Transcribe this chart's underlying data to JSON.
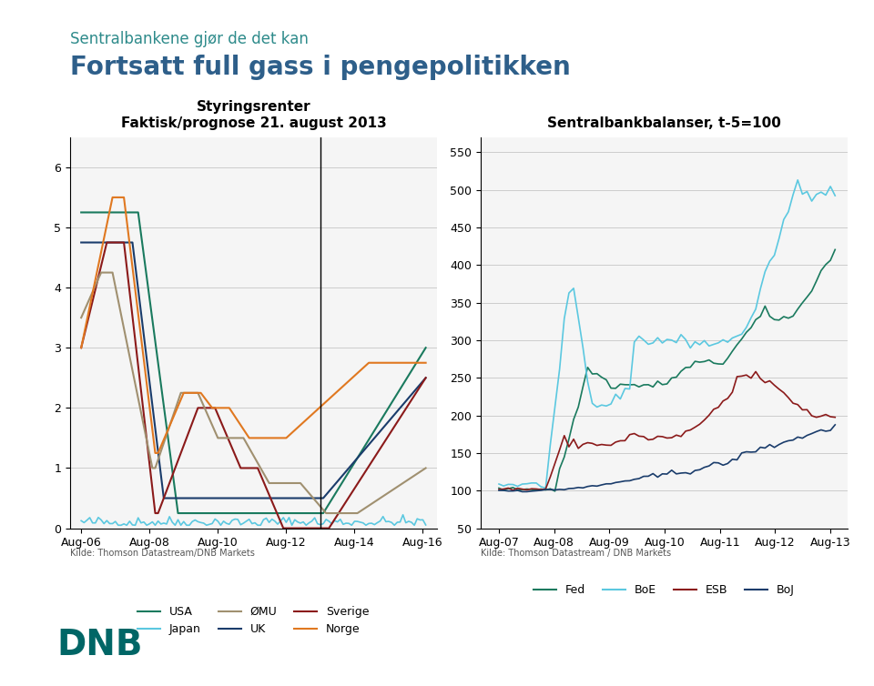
{
  "title_small": "Sentralbankene gjør de det kan",
  "title_large": "Fortsatt full gass i pengepolitikken",
  "title_small_color": "#2e8b8b",
  "title_large_color": "#2e5f8a",
  "chart1_title": "Styringsrenter",
  "chart1_subtitle": "Faktisk/prognose 21. august 2013",
  "chart2_title": "Sentralbankbalanser, t-5=100",
  "chart1_xlabel_ticks": [
    "Aug-06",
    "Aug-08",
    "Aug-10",
    "Aug-12",
    "Aug-14",
    "Aug-16"
  ],
  "chart2_xlabel_ticks": [
    "Aug-07",
    "Aug-08",
    "Aug-09",
    "Aug-10",
    "Aug-11",
    "Aug-12",
    "Aug-13"
  ],
  "chart1_ylim": [
    0,
    6.5
  ],
  "chart1_yticks": [
    0,
    1,
    2,
    3,
    4,
    5,
    6
  ],
  "chart2_ylim": [
    50,
    570
  ],
  "chart2_yticks": [
    50,
    100,
    150,
    200,
    250,
    300,
    350,
    400,
    450,
    500,
    550
  ],
  "source1": "Kilde: Thomson Datastream/DNB Markets",
  "source2": "Kilde: Thomson Datastream / DNB Markets",
  "dnb_color": "#006666",
  "colors": {
    "USA": "#1a7a5e",
    "UK": "#1a3c6b",
    "Japan": "#5bc8e0",
    "Sverige": "#8b1a1a",
    "OMU": "#a09070",
    "Norge": "#e07820",
    "Fed": "#1a7a5e",
    "BoE": "#5bc8e0",
    "ESB": "#8b1a1a",
    "BoJ": "#1a3c6b"
  },
  "bg_color": "#ffffff",
  "plot_bg": "#f5f5f5"
}
